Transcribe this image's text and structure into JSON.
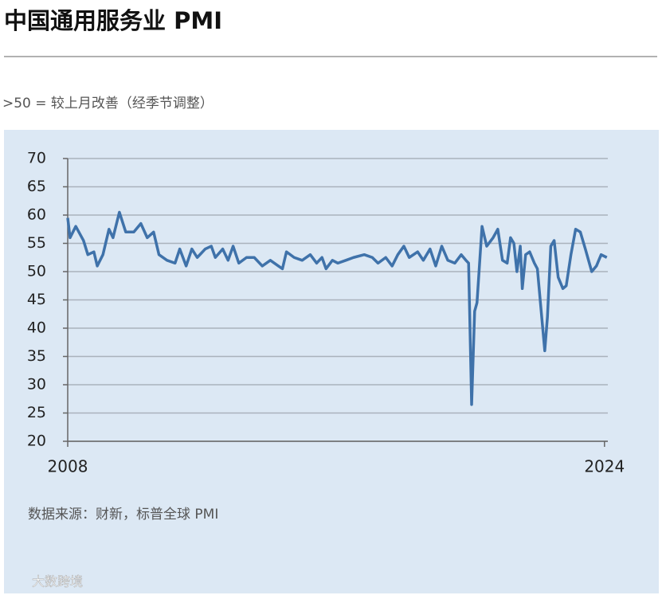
{
  "chart_data": {
    "type": "line",
    "title": "中国通用服务业 PMI",
    "subtitle": ">50 = 较上月改善（经季节调整）",
    "source": "数据来源：财新，标普全球 PMI",
    "watermark": "大数跨境",
    "x": [
      2008.0,
      2008.07,
      2008.24,
      2008.47,
      2008.6,
      2008.78,
      2008.88,
      2009.05,
      2009.23,
      2009.35,
      2009.54,
      2009.73,
      2009.97,
      2010.18,
      2010.37,
      2010.56,
      2010.72,
      2010.96,
      2011.2,
      2011.34,
      2011.53,
      2011.7,
      2011.86,
      2012.1,
      2012.28,
      2012.4,
      2012.62,
      2012.78,
      2012.93,
      2013.1,
      2013.33,
      2013.56,
      2013.8,
      2014.04,
      2014.28,
      2014.4,
      2014.52,
      2014.75,
      2014.99,
      2015.23,
      2015.42,
      2015.58,
      2015.7,
      2015.89,
      2016.05,
      2016.29,
      2016.52,
      2016.84,
      2017.08,
      2017.25,
      2017.48,
      2017.67,
      2017.84,
      2018.02,
      2018.18,
      2018.43,
      2018.6,
      2018.8,
      2018.97,
      2019.15,
      2019.33,
      2019.54,
      2019.73,
      2019.87,
      2019.95,
      2020.04,
      2020.13,
      2020.2,
      2020.35,
      2020.49,
      2020.68,
      2020.82,
      2020.96,
      2021.1,
      2021.2,
      2021.3,
      2021.39,
      2021.49,
      2021.55,
      2021.65,
      2021.77,
      2021.91,
      2022.0,
      2022.22,
      2022.3,
      2022.4,
      2022.5,
      2022.62,
      2022.76,
      2022.86,
      2023.0,
      2023.14,
      2023.28,
      2023.43,
      2023.62,
      2023.76,
      2023.9,
      2024.07
    ],
    "series": [
      {
        "name": "PMI",
        "color": "#3f72aa",
        "values": [
          59.5,
          56,
          58,
          55.5,
          53,
          53.5,
          51,
          53,
          57.5,
          56,
          60.5,
          57,
          57,
          58.5,
          56,
          57,
          53,
          52,
          51.5,
          54,
          51,
          54,
          52.5,
          54,
          54.5,
          52.5,
          54,
          52,
          54.5,
          51.5,
          52.5,
          52.5,
          51,
          52,
          51,
          50.5,
          53.5,
          52.5,
          52,
          53,
          51.5,
          52.5,
          50.5,
          52,
          51.5,
          52,
          52.5,
          53,
          52.5,
          51.5,
          52.5,
          51,
          53,
          54.5,
          52.5,
          53.5,
          52,
          54,
          51,
          54.5,
          52,
          51.5,
          53,
          52,
          51.5,
          26.5,
          43,
          44.5,
          58,
          54.5,
          56,
          57.5,
          52,
          51.5,
          56,
          55,
          50,
          54.5,
          47,
          53,
          53.5,
          51.5,
          50.5,
          36,
          42,
          54.5,
          55.5,
          49,
          47,
          47.5,
          53,
          57.5,
          57,
          54,
          50,
          51,
          53,
          52.5
        ]
      }
    ],
    "xlim": [
      2008,
      2024.1
    ],
    "xticks": [
      2008,
      2024
    ],
    "ylim": [
      20,
      70
    ],
    "yticks": [
      20,
      25,
      30,
      35,
      40,
      45,
      50,
      55,
      60,
      65,
      70
    ],
    "grid": true
  }
}
